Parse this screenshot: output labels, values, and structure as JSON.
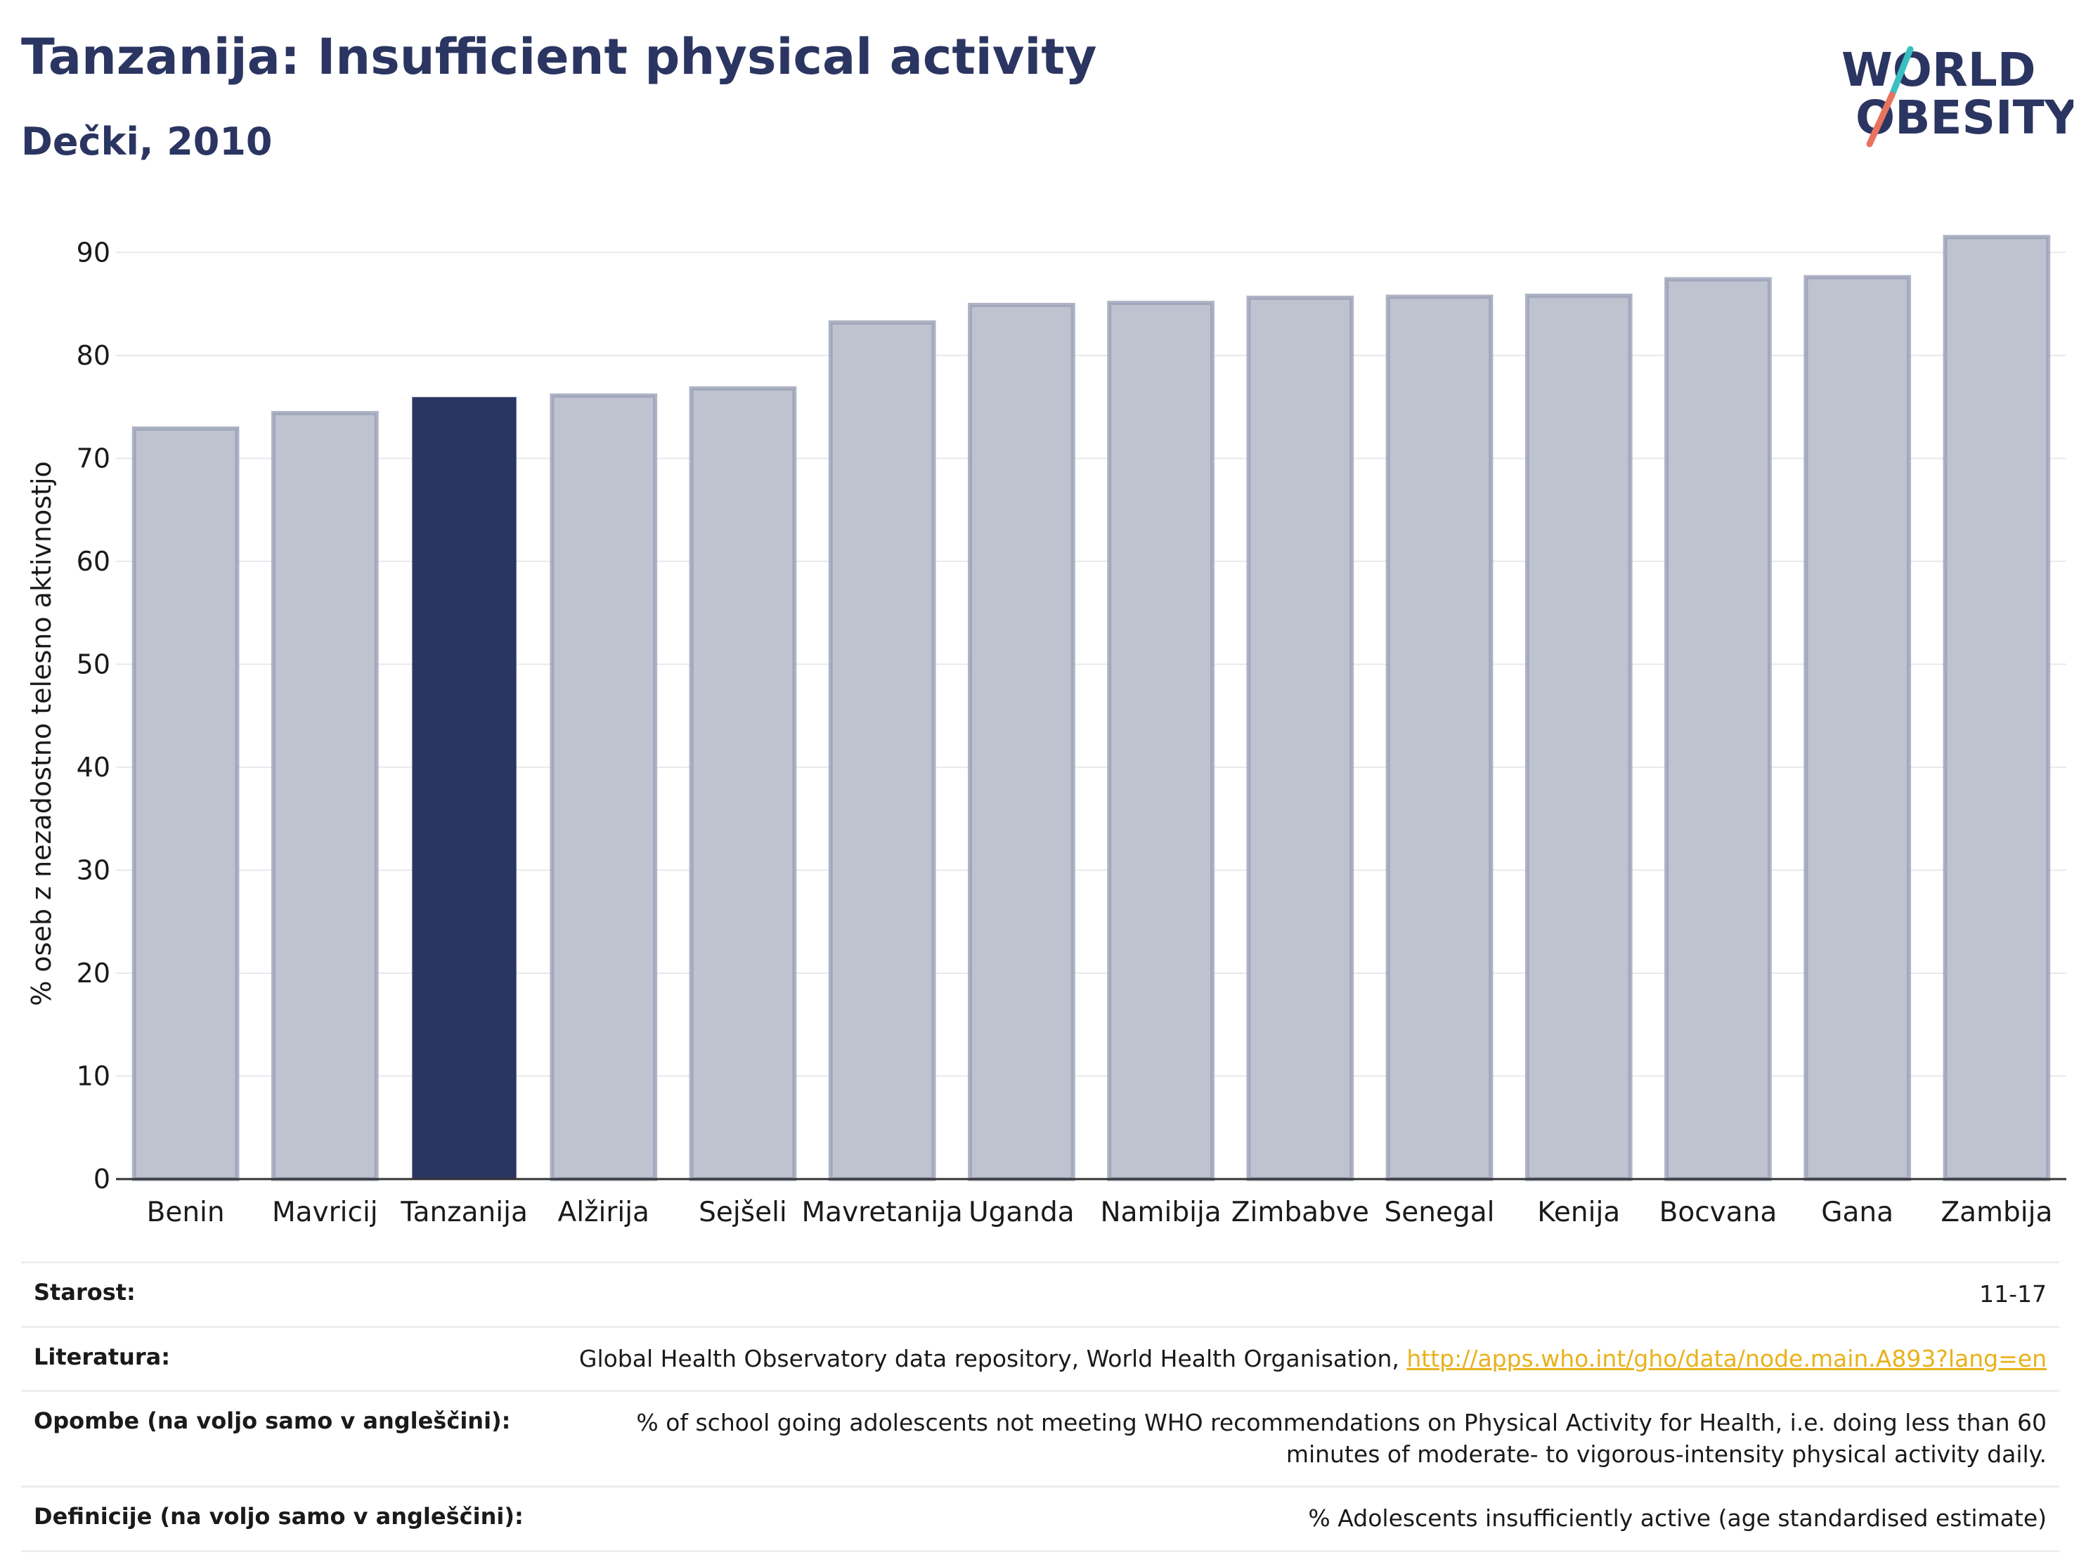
{
  "header": {
    "title": "Tanzanija: Insufficient physical activity",
    "subtitle": "Dečki, 2010"
  },
  "logo": {
    "line1": "WORLD",
    "line2": "OBESITY"
  },
  "chart_data": {
    "type": "bar",
    "ylabel": "% oseb z nezadostno telesno aktivnostjo",
    "xlabel": "",
    "ylim": [
      0,
      92
    ],
    "yticks": [
      0,
      10,
      20,
      30,
      40,
      50,
      60,
      70,
      80,
      90
    ],
    "grid": true,
    "categories": [
      "Benin",
      "Mavricij",
      "Tanzanija",
      "Alžirija",
      "Sejšeli",
      "Mavretanija",
      "Uganda",
      "Namibija",
      "Zimbabve",
      "Senegal",
      "Kenija",
      "Bocvana",
      "Gana",
      "Zambija"
    ],
    "values": [
      72.9,
      74.4,
      75.9,
      76.1,
      76.8,
      83.2,
      84.9,
      85.1,
      85.6,
      85.7,
      85.8,
      87.4,
      87.6,
      91.5
    ],
    "highlight": "Tanzanija",
    "colors": {
      "bar": "#bfc2cf",
      "bar_border": "#9aa0b6",
      "highlight": "#2b3561",
      "axis": "#333333",
      "grid": "#e8e9ee"
    }
  },
  "footer": {
    "rows": [
      {
        "label": "Starost:",
        "value": "11-17"
      },
      {
        "label": "Literatura:",
        "value": "Global Health Observatory data repository, World Health Organisation, ",
        "link": "http://apps.who.int/gho/data/node.main.A893?lang=en"
      },
      {
        "label": "Opombe (na voljo samo v angleščini):",
        "value": "% of school going adolescents not meeting WHO recommendations on Physical Activity for Health, i.e. doing less than 60 minutes of moderate- to vigorous-intensity physical activity daily."
      },
      {
        "label": "Definicije (na voljo samo v angleščini):",
        "value": "% Adolescents insufficiently active (age standardised estimate)"
      }
    ]
  }
}
